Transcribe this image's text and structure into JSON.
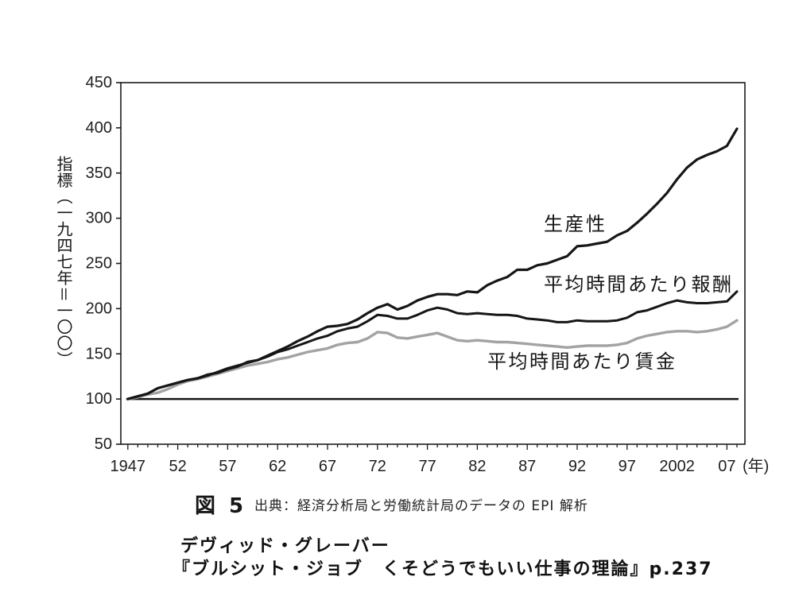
{
  "chart_data": {
    "type": "line",
    "ylabel": "指標（一九四七年＝一〇〇）",
    "xlabel": "(年)",
    "xlim": [
      1946.3,
      2008.8
    ],
    "ylim": [
      50,
      450
    ],
    "yticks": [
      450,
      400,
      350,
      300,
      250,
      200,
      150,
      100,
      50
    ],
    "xticks": [
      1947,
      1952,
      1957,
      1962,
      1967,
      1972,
      1977,
      1982,
      1987,
      1992,
      1997,
      2002,
      2007
    ],
    "xtick_labels": [
      "1947",
      "52",
      "57",
      "62",
      "67",
      "72",
      "77",
      "82",
      "87",
      "92",
      "97",
      "2002",
      "07"
    ],
    "grid": false,
    "legend": "inline",
    "x": [
      1947,
      1948,
      1949,
      1950,
      1951,
      1952,
      1953,
      1954,
      1955,
      1956,
      1957,
      1958,
      1959,
      1960,
      1961,
      1962,
      1963,
      1964,
      1965,
      1966,
      1967,
      1968,
      1969,
      1970,
      1971,
      1972,
      1973,
      1974,
      1975,
      1976,
      1977,
      1978,
      1979,
      1980,
      1981,
      1982,
      1983,
      1984,
      1985,
      1986,
      1987,
      1988,
      1989,
      1990,
      1991,
      1992,
      1993,
      1994,
      1995,
      1996,
      1997,
      1998,
      1999,
      2000,
      2001,
      2002,
      2003,
      2004,
      2005,
      2006,
      2007,
      2008
    ],
    "series": [
      {
        "name": "生産性",
        "color": "#161616",
        "values": [
          100,
          103,
          106,
          112,
          115,
          118,
          121,
          123,
          127,
          129,
          133,
          136,
          141,
          143,
          148,
          153,
          158,
          164,
          169,
          175,
          180,
          181,
          183,
          188,
          195,
          201,
          205,
          199,
          203,
          209,
          213,
          216,
          216,
          215,
          219,
          218,
          226,
          231,
          235,
          243,
          243,
          248,
          250,
          254,
          258,
          269,
          270,
          272,
          274,
          281,
          286,
          295,
          305,
          316,
          328,
          343,
          356,
          365,
          370,
          374,
          380,
          399
        ]
      },
      {
        "name": "平均時間あたり報酬",
        "color": "#161616",
        "values": [
          100,
          103,
          106,
          112,
          115,
          118,
          121,
          123,
          126,
          130,
          134,
          137,
          140,
          143,
          147,
          152,
          155,
          159,
          163,
          167,
          170,
          175,
          178,
          180,
          186,
          193,
          192,
          189,
          189,
          193,
          198,
          201,
          199,
          195,
          194,
          195,
          194,
          193,
          193,
          192,
          189,
          188,
          187,
          185,
          185,
          187,
          186,
          186,
          186,
          187,
          190,
          196,
          198,
          202,
          206,
          209,
          207,
          206,
          206,
          207,
          208,
          219
        ]
      },
      {
        "name": "平均時間あたり賃金",
        "color": "#a3a3a3",
        "values": [
          100,
          102,
          105,
          107,
          111,
          116,
          120,
          122,
          125,
          128,
          131,
          134,
          137,
          139,
          141,
          144,
          146,
          149,
          152,
          154,
          156,
          160,
          162,
          163,
          167,
          174,
          173,
          168,
          167,
          169,
          171,
          173,
          169,
          165,
          164,
          165,
          164,
          163,
          163,
          162,
          161,
          160,
          159,
          158,
          157,
          158,
          159,
          159,
          159,
          160,
          162,
          167,
          170,
          172,
          174,
          175,
          175,
          174,
          175,
          177,
          180,
          187
        ]
      }
    ],
    "reference_lines": [
      {
        "y": 100,
        "color": "#161616"
      }
    ]
  },
  "caption": {
    "figure_label": "図 5",
    "source": "出典：経済分析局と労働統計局のデータの EPI 解析"
  },
  "citation": {
    "author": "デヴィッド・グレーバー",
    "book": "『ブルシット・ジョブ　くそどうでもいい仕事の理論』p.237"
  }
}
